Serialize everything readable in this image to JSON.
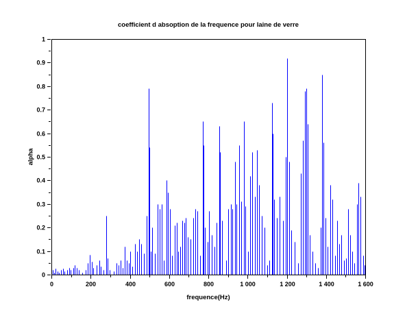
{
  "window": {
    "background": "#ffffff"
  },
  "chart_data": {
    "type": "line",
    "title": "coefficient d absoption de la frequence pour laine de verre",
    "xlabel": "frequence(Hz)",
    "ylabel": "alpha",
    "xlim": [
      0,
      1600
    ],
    "ylim": [
      0,
      1
    ],
    "x_major_ticks": [
      0,
      200,
      400,
      600,
      800,
      1000,
      1200,
      1400,
      1600
    ],
    "x_tick_labels": [
      "0",
      "200",
      "400",
      "600",
      "800",
      "1 000",
      "1 200",
      "1 400",
      "1 600"
    ],
    "x_minor_step": 100,
    "y_major_ticks": [
      0,
      0.1,
      0.2,
      0.3,
      0.4,
      0.5,
      0.6,
      0.7,
      0.8,
      0.9,
      1
    ],
    "y_tick_labels": [
      "0",
      "0.1",
      "0.2",
      "0.3",
      "0.4",
      "0.5",
      "0.6",
      "0.7",
      "0.8",
      "0.9",
      "1"
    ],
    "y_minor_step": 0.05,
    "grid": false,
    "legend": null,
    "line_color": "#0000ff",
    "axis_color": "#000000",
    "points": [
      [
        8,
        0.02
      ],
      [
        15,
        0.01
      ],
      [
        22,
        0.025
      ],
      [
        30,
        0.015
      ],
      [
        40,
        0.01
      ],
      [
        50,
        0.02
      ],
      [
        58,
        0.025
      ],
      [
        68,
        0.015
      ],
      [
        80,
        0.02
      ],
      [
        90,
        0.03
      ],
      [
        98,
        0.02
      ],
      [
        112,
        0.03
      ],
      [
        120,
        0.04
      ],
      [
        130,
        0.03
      ],
      [
        140,
        0.02
      ],
      [
        157,
        0.01
      ],
      [
        175,
        0.02
      ],
      [
        185,
        0.05
      ],
      [
        196,
        0.085
      ],
      [
        205,
        0.055
      ],
      [
        214,
        0.03
      ],
      [
        232,
        0.04
      ],
      [
        243,
        0.06
      ],
      [
        252,
        0.035
      ],
      [
        266,
        0.02
      ],
      [
        280,
        0.25
      ],
      [
        287,
        0.07
      ],
      [
        298,
        0.02
      ],
      [
        318,
        0.015
      ],
      [
        332,
        0.05
      ],
      [
        342,
        0.04
      ],
      [
        352,
        0.06
      ],
      [
        362,
        0.03
      ],
      [
        374,
        0.12
      ],
      [
        384,
        0.06
      ],
      [
        395,
        0.05
      ],
      [
        403,
        0.1
      ],
      [
        413,
        0.035
      ],
      [
        426,
        0.13
      ],
      [
        436,
        0.1
      ],
      [
        448,
        0.15
      ],
      [
        458,
        0.13
      ],
      [
        470,
        0.09
      ],
      [
        486,
        0.25
      ],
      [
        496,
        0.79
      ],
      [
        501,
        0.54
      ],
      [
        507,
        0.1
      ],
      [
        515,
        0.2
      ],
      [
        528,
        0.09
      ],
      [
        541,
        0.3
      ],
      [
        551,
        0.28
      ],
      [
        561,
        0.3
      ],
      [
        573,
        0.06
      ],
      [
        587,
        0.4
      ],
      [
        595,
        0.35
      ],
      [
        604,
        0.28
      ],
      [
        616,
        0.08
      ],
      [
        629,
        0.21
      ],
      [
        638,
        0.22
      ],
      [
        647,
        0.1
      ],
      [
        658,
        0.12
      ],
      [
        668,
        0.23
      ],
      [
        676,
        0.22
      ],
      [
        684,
        0.24
      ],
      [
        696,
        0.16
      ],
      [
        710,
        0.15
      ],
      [
        723,
        0.24
      ],
      [
        733,
        0.28
      ],
      [
        744,
        0.27
      ],
      [
        757,
        0.08
      ],
      [
        772,
        0.65
      ],
      [
        777,
        0.55
      ],
      [
        784,
        0.2
      ],
      [
        796,
        0.14
      ],
      [
        804,
        0.27
      ],
      [
        818,
        0.17
      ],
      [
        831,
        0.12
      ],
      [
        843,
        0.22
      ],
      [
        856,
        0.63
      ],
      [
        861,
        0.52
      ],
      [
        871,
        0.23
      ],
      [
        891,
        0.06
      ],
      [
        902,
        0.28
      ],
      [
        915,
        0.3
      ],
      [
        923,
        0.28
      ],
      [
        936,
        0.48
      ],
      [
        944,
        0.3
      ],
      [
        957,
        0.55
      ],
      [
        968,
        0.31
      ],
      [
        980,
        0.65
      ],
      [
        990,
        0.29
      ],
      [
        1002,
        0.1
      ],
      [
        1013,
        0.42
      ],
      [
        1024,
        0.52
      ],
      [
        1038,
        0.33
      ],
      [
        1048,
        0.53
      ],
      [
        1058,
        0.38
      ],
      [
        1073,
        0.25
      ],
      [
        1087,
        0.2
      ],
      [
        1100,
        0.04
      ],
      [
        1112,
        0.06
      ],
      [
        1124,
        0.73
      ],
      [
        1129,
        0.6
      ],
      [
        1137,
        0.32
      ],
      [
        1150,
        0.24
      ],
      [
        1164,
        0.33
      ],
      [
        1181,
        0.23
      ],
      [
        1196,
        0.5
      ],
      [
        1203,
        0.92
      ],
      [
        1211,
        0.48
      ],
      [
        1222,
        0.19
      ],
      [
        1240,
        0.14
      ],
      [
        1258,
        0.05
      ],
      [
        1272,
        0.43
      ],
      [
        1281,
        0.57
      ],
      [
        1294,
        0.78
      ],
      [
        1300,
        0.79
      ],
      [
        1306,
        0.64
      ],
      [
        1318,
        0.17
      ],
      [
        1331,
        0.1
      ],
      [
        1345,
        0.05
      ],
      [
        1360,
        0.03
      ],
      [
        1374,
        0.2
      ],
      [
        1380,
        0.85
      ],
      [
        1388,
        0.56
      ],
      [
        1398,
        0.24
      ],
      [
        1408,
        0.12
      ],
      [
        1422,
        0.38
      ],
      [
        1432,
        0.32
      ],
      [
        1445,
        0.08
      ],
      [
        1457,
        0.23
      ],
      [
        1467,
        0.13
      ],
      [
        1478,
        0.17
      ],
      [
        1490,
        0.06
      ],
      [
        1502,
        0.07
      ],
      [
        1513,
        0.28
      ],
      [
        1522,
        0.17
      ],
      [
        1532,
        0.1
      ],
      [
        1545,
        0.05
      ],
      [
        1558,
        0.3
      ],
      [
        1566,
        0.39
      ],
      [
        1574,
        0.33
      ],
      [
        1588,
        0.08
      ],
      [
        1596,
        0.04
      ]
    ]
  }
}
